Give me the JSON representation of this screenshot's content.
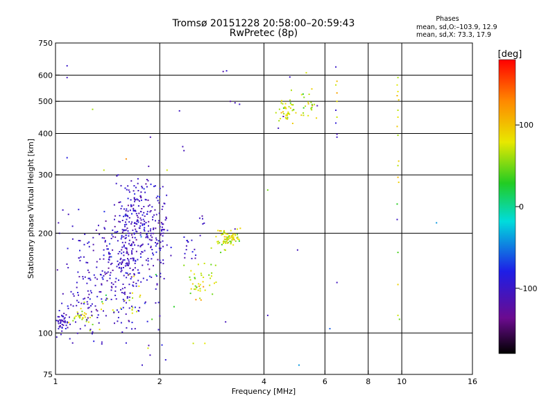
{
  "header": {
    "title_line1": "Tromsø 20151228 20:58:00–20:59:43",
    "title_line2": "RwPretec (8p)",
    "phases_label": "Phases",
    "stats_o": "mean, sd,O:–103.9, 12.9",
    "stats_x": "mean, sd,X:  73.3, 17.9"
  },
  "chart_data": {
    "type": "scatter",
    "xlabel": "Frequency [MHz]",
    "ylabel": "Stationary phase Virtual Height [km]",
    "xscale": "log",
    "yscale": "log",
    "xlim": [
      1,
      16
    ],
    "ylim": [
      75,
      750
    ],
    "xticks": [
      1,
      2,
      4,
      6,
      8,
      10,
      16
    ],
    "xtick_labels": [
      "1",
      "2",
      "4",
      "6",
      "8",
      "10",
      "16"
    ],
    "yticks": [
      75,
      100,
      200,
      300,
      400,
      500,
      600,
      750
    ],
    "ytick_labels": [
      "75",
      "100",
      "200",
      "300",
      "400",
      "500",
      "600",
      "750"
    ],
    "xgrid": [
      2,
      4,
      6,
      8,
      10
    ],
    "ygrid": [
      100,
      200,
      300,
      400,
      500,
      600
    ],
    "colorbar": {
      "label": "[deg]",
      "ticks": [
        100,
        0,
        -100
      ],
      "tick_labels": [
        "100",
        "0",
        "–100"
      ],
      "range": [
        -180,
        180
      ]
    },
    "o_mode": {
      "color_hex": "#1a1ae6",
      "phase_mean": -103.9,
      "phase_sd": 12.9,
      "clusters": [
        {
          "f": 1.05,
          "h": 108,
          "sf": 0.03,
          "sh": 4,
          "n": 45
        },
        {
          "f": 1.22,
          "h": 120,
          "sf": 0.09,
          "sh": 10,
          "n": 40
        },
        {
          "f": 1.45,
          "h": 150,
          "sf": 0.16,
          "sh": 28,
          "n": 170
        },
        {
          "f": 1.65,
          "h": 190,
          "sf": 0.15,
          "sh": 40,
          "n": 240
        },
        {
          "f": 1.75,
          "h": 240,
          "sf": 0.08,
          "sh": 35,
          "n": 60
        },
        {
          "f": 1.98,
          "h": 200,
          "sf": 0.07,
          "sh": 35,
          "n": 80
        },
        {
          "f": 1.15,
          "h": 160,
          "sf": 0.08,
          "sh": 30,
          "n": 20
        },
        {
          "f": 2.4,
          "h": 185,
          "sf": 0.08,
          "sh": 10,
          "n": 15
        },
        {
          "f": 2.65,
          "h": 215,
          "sf": 0.03,
          "sh": 12,
          "n": 6
        }
      ],
      "points": [
        {
          "f": 1.08,
          "h": 640
        },
        {
          "f": 1.08,
          "h": 590
        },
        {
          "f": 1.08,
          "h": 338
        },
        {
          "f": 1.05,
          "h": 235
        },
        {
          "f": 1.09,
          "h": 228
        },
        {
          "f": 1.02,
          "h": 215
        },
        {
          "f": 1.12,
          "h": 210
        },
        {
          "f": 1.88,
          "h": 390
        },
        {
          "f": 1.78,
          "h": 80
        },
        {
          "f": 2.03,
          "h": 92
        },
        {
          "f": 2.08,
          "h": 83
        },
        {
          "f": 2.28,
          "h": 468
        },
        {
          "f": 2.33,
          "h": 365
        },
        {
          "f": 2.35,
          "h": 355
        },
        {
          "f": 3.05,
          "h": 615
        },
        {
          "f": 3.12,
          "h": 618
        },
        {
          "f": 3.2,
          "h": 500
        },
        {
          "f": 3.3,
          "h": 495
        },
        {
          "f": 3.4,
          "h": 490
        },
        {
          "f": 3.1,
          "h": 108
        },
        {
          "f": 3.3,
          "h": 206
        },
        {
          "f": 4.1,
          "h": 113
        },
        {
          "f": 4.4,
          "h": 415
        },
        {
          "f": 4.55,
          "h": 450
        },
        {
          "f": 4.75,
          "h": 592
        },
        {
          "f": 5.0,
          "h": 178
        },
        {
          "f": 5.7,
          "h": 485
        },
        {
          "f": 6.45,
          "h": 635
        },
        {
          "f": 6.45,
          "h": 430
        },
        {
          "f": 6.5,
          "h": 398
        },
        {
          "f": 6.5,
          "h": 390
        },
        {
          "f": 6.5,
          "h": 142
        },
        {
          "f": 6.45,
          "h": 470
        },
        {
          "f": 9.7,
          "h": 220
        }
      ]
    },
    "x_mode": {
      "phase_mean": 73.3,
      "phase_sd": 17.9,
      "clusters": [
        {
          "f": 1.18,
          "h": 112,
          "sf": 0.05,
          "sh": 3,
          "n": 25
        },
        {
          "f": 1.35,
          "h": 114,
          "sf": 0.08,
          "sh": 6,
          "n": 12
        },
        {
          "f": 1.7,
          "h": 128,
          "sf": 0.1,
          "sh": 8,
          "n": 15
        },
        {
          "f": 2.55,
          "h": 138,
          "sf": 0.08,
          "sh": 8,
          "n": 28
        },
        {
          "f": 2.8,
          "h": 150,
          "sf": 0.08,
          "sh": 8,
          "n": 12
        },
        {
          "f": 3.15,
          "h": 193,
          "sf": 0.12,
          "sh": 6,
          "n": 80
        },
        {
          "f": 4.65,
          "h": 465,
          "sf": 0.15,
          "sh": 20,
          "n": 40
        },
        {
          "f": 5.3,
          "h": 480,
          "sf": 0.15,
          "sh": 20,
          "n": 20
        }
      ],
      "points": [
        {
          "f": 1.28,
          "h": 473
        },
        {
          "f": 1.85,
          "h": 90
        },
        {
          "f": 2.5,
          "h": 93
        },
        {
          "f": 2.7,
          "h": 93
        },
        {
          "f": 1.38,
          "h": 310
        },
        {
          "f": 1.6,
          "h": 335
        },
        {
          "f": 2.1,
          "h": 310
        },
        {
          "f": 1.95,
          "h": 150
        },
        {
          "f": 2.35,
          "h": 160
        },
        {
          "f": 4.1,
          "h": 270
        },
        {
          "f": 5.3,
          "h": 610
        },
        {
          "f": 5.4,
          "h": 525
        },
        {
          "f": 5.5,
          "h": 545
        },
        {
          "f": 4.5,
          "h": 502
        },
        {
          "f": 4.8,
          "h": 540
        },
        {
          "f": 9.75,
          "h": 590
        },
        {
          "f": 9.7,
          "h": 560
        },
        {
          "f": 9.75,
          "h": 535
        },
        {
          "f": 9.7,
          "h": 520
        },
        {
          "f": 9.8,
          "h": 505
        },
        {
          "f": 9.75,
          "h": 470
        },
        {
          "f": 9.75,
          "h": 448
        },
        {
          "f": 9.7,
          "h": 420
        },
        {
          "f": 9.75,
          "h": 395
        },
        {
          "f": 9.8,
          "h": 330
        },
        {
          "f": 9.75,
          "h": 320
        },
        {
          "f": 9.75,
          "h": 295
        },
        {
          "f": 9.8,
          "h": 285
        },
        {
          "f": 9.75,
          "h": 175
        },
        {
          "f": 9.75,
          "h": 140
        },
        {
          "f": 9.75,
          "h": 113
        },
        {
          "f": 9.85,
          "h": 110
        },
        {
          "f": 6.5,
          "h": 530
        },
        {
          "f": 6.45,
          "h": 560
        },
        {
          "f": 6.5,
          "h": 575
        },
        {
          "f": 6.5,
          "h": 500
        },
        {
          "f": 6.5,
          "h": 448
        }
      ]
    },
    "other_points": [
      {
        "f": 5.05,
        "h": 80,
        "phase": -40
      },
      {
        "f": 6.2,
        "h": 103,
        "phase": -60
      },
      {
        "f": 12.6,
        "h": 215,
        "phase": -40
      },
      {
        "f": 1.9,
        "h": 110,
        "phase": 40
      },
      {
        "f": 2.2,
        "h": 120,
        "phase": 30
      },
      {
        "f": 2.9,
        "h": 160,
        "phase": 60
      },
      {
        "f": 3.0,
        "h": 175,
        "phase": 40
      },
      {
        "f": 1.55,
        "h": 118,
        "phase": -70
      },
      {
        "f": 1.4,
        "h": 130,
        "phase": 20
      },
      {
        "f": 9.7,
        "h": 245,
        "phase": 30
      }
    ]
  }
}
